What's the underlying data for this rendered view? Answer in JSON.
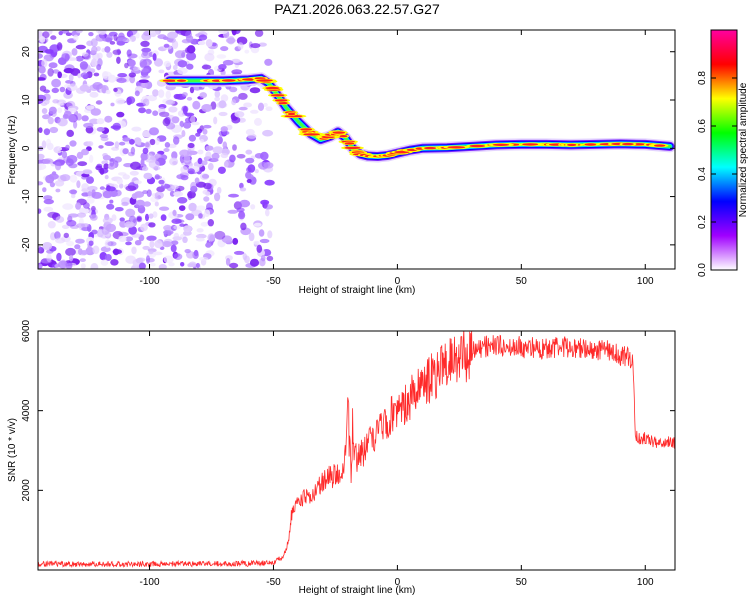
{
  "chart_data": [
    {
      "type": "heatmap",
      "title": "PAZ1.2026.063.22.57.G27",
      "xlabel": "Height of straight line (km)",
      "ylabel": "Frequency (Hz)",
      "xlim": [
        -145,
        112
      ],
      "ylim": [
        -25,
        24.5
      ],
      "x_ticks": [
        -100,
        -50,
        0,
        50,
        100
      ],
      "y_ticks": [
        -20,
        -10,
        0,
        10,
        20
      ],
      "x_tick_labels": [
        "-100",
        "-50",
        "0",
        "50",
        "100"
      ],
      "y_tick_labels": [
        "-20",
        "-10",
        "0",
        "10",
        "20"
      ],
      "noise_region_x": [
        -145,
        -51
      ],
      "ridge": {
        "x": [
          -92,
          -80,
          -70,
          -60,
          -55,
          -52,
          -49,
          -45,
          -40,
          -35,
          -31,
          -27,
          -24,
          -21,
          -18,
          -15,
          -12,
          -8,
          -4,
          0,
          5,
          10,
          20,
          30,
          40,
          50,
          60,
          70,
          80,
          90,
          100,
          105,
          110
        ],
        "freq": [
          14,
          14,
          14,
          14.2,
          14.5,
          13.5,
          11.5,
          8.5,
          5.5,
          3,
          1.8,
          2.5,
          3.4,
          2.2,
          0,
          -1.2,
          -1.6,
          -1.7,
          -1.5,
          -1,
          -0.4,
          0,
          0.1,
          0.4,
          0.7,
          0.8,
          0.8,
          0.7,
          0.8,
          0.9,
          0.8,
          0.6,
          0.4
        ]
      },
      "colorbar": {
        "label": "Normalized spectral amplitude",
        "range": [
          0.0,
          1.0
        ],
        "ticks": [
          0.0,
          0.2,
          0.4,
          0.6,
          0.8
        ],
        "tick_labels": [
          "0.0",
          "0.2",
          "0.4",
          "0.6",
          "0.8"
        ],
        "colors": [
          "#ffffff",
          "#a000ff",
          "#0000ff",
          "#00ffff",
          "#00ff00",
          "#ffff00",
          "#ff0000",
          "#ff00a0"
        ]
      }
    },
    {
      "type": "line",
      "xlabel": "Height of straight line (km)",
      "ylabel": "SNR (10 * v/v)",
      "xlim": [
        -145,
        112
      ],
      "ylim": [
        0,
        6000
      ],
      "x_ticks": [
        -100,
        -50,
        0,
        50,
        100
      ],
      "y_ticks": [
        2000,
        4000,
        6000
      ],
      "x_tick_labels": [
        "-100",
        "-50",
        "0",
        "50",
        "100"
      ],
      "y_tick_labels": [
        "2000",
        "4000",
        "6000"
      ],
      "series": [
        {
          "name": "SNR",
          "color": "#ff2a2a",
          "x": [
            -145,
            -100,
            -60,
            -50,
            -46,
            -44,
            -43,
            -41,
            -38,
            -35,
            -32,
            -28,
            -25,
            -22,
            -21,
            -20,
            -19,
            -16,
            -13,
            -10,
            -5,
            0,
            5,
            10,
            15,
            20,
            25,
            30,
            35,
            40,
            50,
            60,
            70,
            80,
            85,
            90,
            95,
            96,
            97,
            100,
            105,
            110,
            112
          ],
          "y": [
            150,
            150,
            160,
            180,
            350,
            700,
            1300,
            1600,
            1800,
            1900,
            2100,
            2300,
            2400,
            2600,
            3000,
            4200,
            2900,
            2800,
            3000,
            3300,
            3700,
            4000,
            4300,
            4600,
            4900,
            5100,
            5300,
            5500,
            5600,
            5650,
            5600,
            5550,
            5600,
            5500,
            5500,
            5400,
            5300,
            3400,
            3300,
            3300,
            3200,
            3200,
            3200
          ]
        }
      ]
    }
  ]
}
